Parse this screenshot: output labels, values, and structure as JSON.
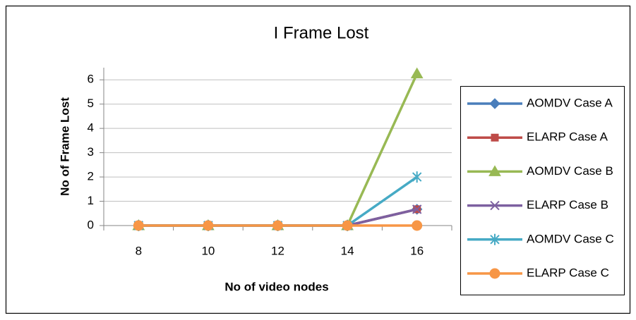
{
  "chart_data": {
    "type": "line",
    "title": "I Frame Lost",
    "x_label": "No of video nodes",
    "y_label": "No of Frame Lost",
    "categories": [
      "8",
      "10",
      "12",
      "14",
      "16"
    ],
    "series": [
      {
        "name": "AOMDV Case A",
        "color": "#4a7ebb",
        "values": [
          0,
          0,
          0,
          0,
          0.67
        ]
      },
      {
        "name": "ELARP Case A",
        "color": "#be4b48",
        "values": [
          0,
          0,
          0,
          0,
          0.67
        ]
      },
      {
        "name": "AOMDV Case B",
        "color": "#98b954",
        "values": [
          0,
          0,
          0,
          0,
          6.25
        ]
      },
      {
        "name": "ELARP Case B",
        "color": "#7d60a0",
        "values": [
          0,
          0,
          0,
          0,
          0.67
        ]
      },
      {
        "name": "AOMDV Case C",
        "color": "#46aac5",
        "values": [
          0,
          0,
          0,
          0,
          2
        ]
      },
      {
        "name": "ELARP Case C",
        "color": "#f79646",
        "values": [
          0,
          0,
          0,
          0,
          0
        ]
      }
    ],
    "ylim": [
      0,
      6.5
    ],
    "yticks": [
      0,
      1,
      2,
      3,
      4,
      5,
      6
    ],
    "grid": true,
    "legend": "right"
  }
}
